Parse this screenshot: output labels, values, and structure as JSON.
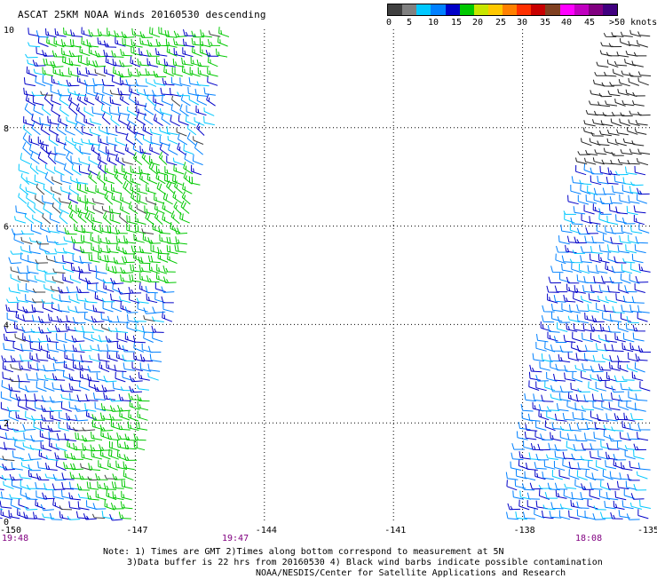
{
  "title": "ASCAT 25KM NOAA Winds 20160530 descending",
  "colorbar": {
    "colors": [
      "#404040",
      "#808080",
      "#00c8ff",
      "#0080ff",
      "#0000c8",
      "#00c800",
      "#c8e600",
      "#ffc800",
      "#ff8000",
      "#ff3000",
      "#c80000",
      "#804020",
      "#ff00ff",
      "#c000c0",
      "#800080",
      "#40007f"
    ],
    "labels": [
      "0",
      "5",
      "10",
      "15",
      "20",
      "25",
      "30",
      "35",
      "40",
      "45",
      ">50 knots"
    ]
  },
  "axes": {
    "lon_ticks": [
      "-150",
      "-147",
      "-144",
      "-141",
      "-138",
      "-135"
    ],
    "lat_ticks": [
      "10",
      "8",
      "6",
      "4",
      "2",
      "0"
    ],
    "lon_range": [
      -150,
      -135
    ],
    "lat_range": [
      0,
      10
    ]
  },
  "pass_times": [
    "19:48",
    "19:47",
    "18:08"
  ],
  "notes": [
    "Note: 1) Times are GMT 2)Times along bottom correspond to measurement at 5N",
    "3)Data buffer is 22 hrs from 20160530 4) Black wind barbs indicate possible contamination",
    "NOAA/NESDIS/Center for Satellite Applications and Research"
  ],
  "swaths": [
    {
      "name": "western-swath",
      "lon_left_bottom": -150.1,
      "lon_right_bottom": -147.1,
      "lon_left_top": -149.2,
      "lon_right_top": -144.7,
      "lat_bottom": 0.0,
      "lat_top": 10.0
    },
    {
      "name": "eastern-swath",
      "lon_left_bottom": -138.3,
      "lon_right_bottom": -135.0,
      "lon_left_top": -135.8,
      "lon_right_top": -135.0,
      "lat_bottom": 0.0,
      "lat_top": 10.0
    }
  ]
}
